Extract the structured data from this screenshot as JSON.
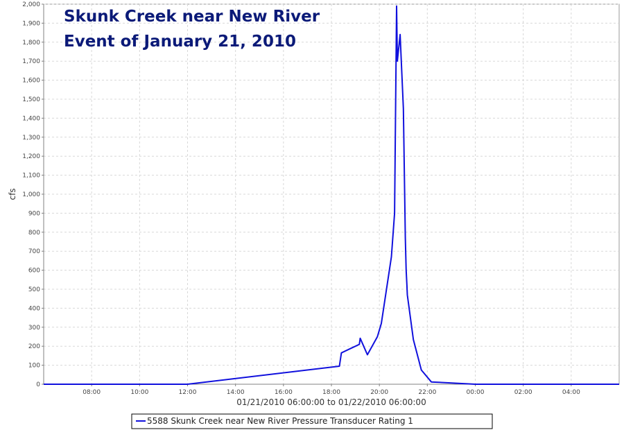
{
  "colors": {
    "series": "#1010dd",
    "title": "#0b1a78",
    "grid": "#d8d8d8"
  },
  "chart_data": {
    "type": "line",
    "title_lines": [
      "Skunk Creek near New River",
      "Event of January 21, 2010"
    ],
    "xlabel": "01/21/2010 06:00:00 to 01/22/2010 06:00:00",
    "ylabel": "cfs",
    "xlim": [
      "01/21/2010 06:00",
      "01/22/2010 06:00"
    ],
    "ylim": [
      0,
      2000
    ],
    "grid": true,
    "legend_position": "bottom",
    "x_ticks": [
      {
        "time": "01/21/2010 08:00",
        "label": "08:00"
      },
      {
        "time": "01/21/2010 10:00",
        "label": "10:00"
      },
      {
        "time": "01/21/2010 12:00",
        "label": "12:00"
      },
      {
        "time": "01/21/2010 14:00",
        "label": "14:00"
      },
      {
        "time": "01/21/2010 16:00",
        "label": "16:00"
      },
      {
        "time": "01/21/2010 18:00",
        "label": "18:00"
      },
      {
        "time": "01/21/2010 20:00",
        "label": "20:00"
      },
      {
        "time": "01/21/2010 22:00",
        "label": "22:00"
      },
      {
        "time": "01/22/2010 00:00",
        "label": "00:00"
      },
      {
        "time": "01/22/2010 02:00",
        "label": "02:00"
      },
      {
        "time": "01/22/2010 04:00",
        "label": "04:00"
      }
    ],
    "y_ticks": [
      {
        "value": 0,
        "label": "0"
      },
      {
        "value": 100,
        "label": "100"
      },
      {
        "value": 200,
        "label": "200"
      },
      {
        "value": 300,
        "label": "300"
      },
      {
        "value": 400,
        "label": "400"
      },
      {
        "value": 500,
        "label": "500"
      },
      {
        "value": 600,
        "label": "600"
      },
      {
        "value": 700,
        "label": "700"
      },
      {
        "value": 800,
        "label": "800"
      },
      {
        "value": 900,
        "label": "900"
      },
      {
        "value": 1000,
        "label": "1,000"
      },
      {
        "value": 1100,
        "label": "1,100"
      },
      {
        "value": 1200,
        "label": "1,200"
      },
      {
        "value": 1300,
        "label": "1,300"
      },
      {
        "value": 1400,
        "label": "1,400"
      },
      {
        "value": 1500,
        "label": "1,500"
      },
      {
        "value": 1600,
        "label": "1,600"
      },
      {
        "value": 1700,
        "label": "1,700"
      },
      {
        "value": 1800,
        "label": "1,800"
      },
      {
        "value": 1900,
        "label": "1,900"
      },
      {
        "value": 2000,
        "label": "2,000"
      }
    ],
    "series": [
      {
        "name": "5588 Skunk Creek near New River Pressure Transducer Rating 1",
        "points": [
          {
            "x": "01/21/2010 06:00",
            "y": 0
          },
          {
            "x": "01/21/2010 12:00",
            "y": 0
          },
          {
            "x": "01/21/2010 18:20",
            "y": 95
          },
          {
            "x": "01/21/2010 18:25",
            "y": 165
          },
          {
            "x": "01/21/2010 19:10",
            "y": 210
          },
          {
            "x": "01/21/2010 19:12",
            "y": 242
          },
          {
            "x": "01/21/2010 19:30",
            "y": 155
          },
          {
            "x": "01/21/2010 19:55",
            "y": 250
          },
          {
            "x": "01/21/2010 20:05",
            "y": 320
          },
          {
            "x": "01/21/2010 20:30",
            "y": 670
          },
          {
            "x": "01/21/2010 20:38",
            "y": 900
          },
          {
            "x": "01/21/2010 20:43",
            "y": 1990
          },
          {
            "x": "01/21/2010 20:45",
            "y": 1700
          },
          {
            "x": "01/21/2010 20:52",
            "y": 1840
          },
          {
            "x": "01/21/2010 21:00",
            "y": 1450
          },
          {
            "x": "01/21/2010 21:05",
            "y": 770
          },
          {
            "x": "01/21/2010 21:07",
            "y": 600
          },
          {
            "x": "01/21/2010 21:09",
            "y": 520
          },
          {
            "x": "01/21/2010 21:10",
            "y": 470
          },
          {
            "x": "01/21/2010 21:25",
            "y": 235
          },
          {
            "x": "01/21/2010 21:45",
            "y": 75
          },
          {
            "x": "01/21/2010 22:10",
            "y": 12
          },
          {
            "x": "01/22/2010 00:00",
            "y": 0
          },
          {
            "x": "01/22/2010 06:00",
            "y": 0
          }
        ]
      }
    ]
  }
}
